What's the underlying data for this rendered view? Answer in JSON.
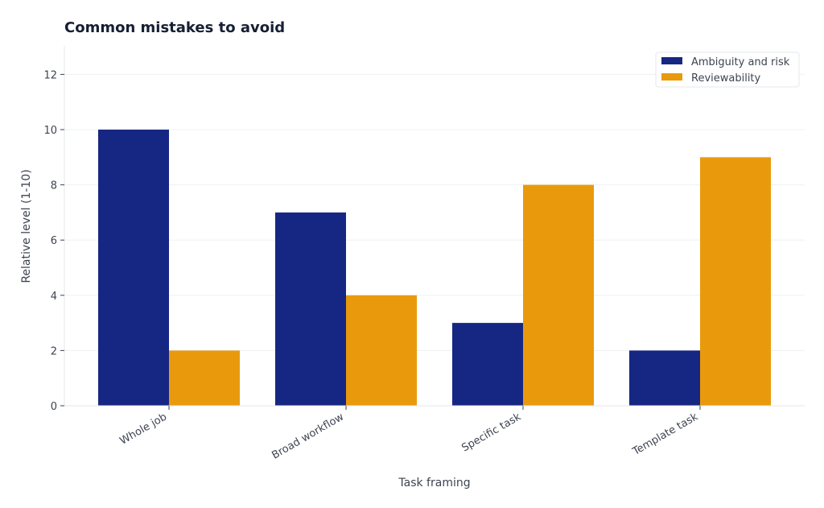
{
  "chart_data": {
    "type": "bar",
    "title": "Common mistakes to avoid",
    "xlabel": "Task framing",
    "ylabel": "Relative level (1-10)",
    "categories": [
      "Whole job",
      "Broad workflow",
      "Specific task",
      "Template task"
    ],
    "series": [
      {
        "name": "Ambiguity and risk",
        "values": [
          10,
          7,
          3,
          2
        ],
        "color": "#162783"
      },
      {
        "name": "Reviewability",
        "values": [
          2,
          4,
          8,
          9
        ],
        "color": "#e99a0c"
      }
    ],
    "ylim": [
      0,
      13
    ],
    "yticks": [
      0,
      2,
      4,
      6,
      8,
      10,
      12
    ],
    "grid": true,
    "legend_position": "top-right"
  }
}
